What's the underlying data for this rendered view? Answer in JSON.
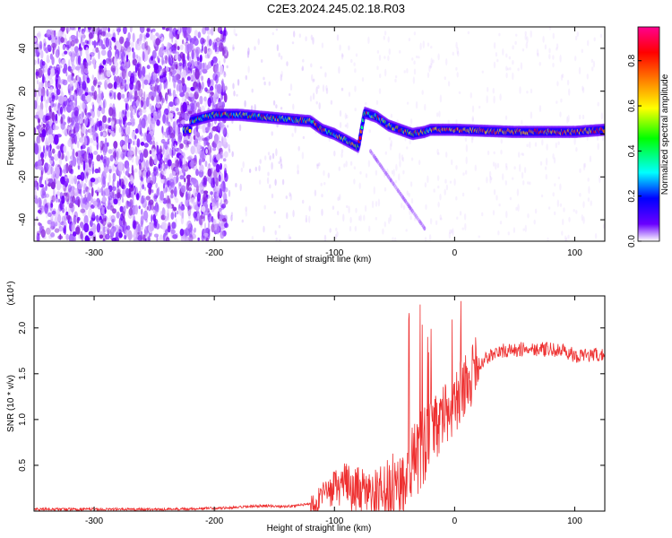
{
  "title": "C2E3.2024.245.02.18.R03",
  "chart_data": [
    {
      "type": "heatmap",
      "title": "C2E3.2024.245.02.18.R03",
      "xlabel": "Height of straight line (km)",
      "ylabel": "Frequency (Hz)",
      "xlim": [
        -350,
        125
      ],
      "ylim": [
        -50,
        50
      ],
      "xticks": [
        -300,
        -200,
        -100,
        0,
        100
      ],
      "yticks": [
        -40,
        -20,
        0,
        20,
        40
      ],
      "colorbar": {
        "label": "Normalized spectral amplitude",
        "range": [
          0,
          0.95
        ],
        "ticks": [
          0.0,
          0.2,
          0.4,
          0.6,
          0.8
        ],
        "colors": [
          "#ffffff",
          "#6a00ff",
          "#0000ff",
          "#00ffff",
          "#00ff00",
          "#ffff00",
          "#ff8000",
          "#ff0000",
          "#ff0090"
        ]
      },
      "ridge": [
        {
          "x": -220,
          "y": 6
        },
        {
          "x": -200,
          "y": 9
        },
        {
          "x": -180,
          "y": 9
        },
        {
          "x": -160,
          "y": 8
        },
        {
          "x": -140,
          "y": 7
        },
        {
          "x": -120,
          "y": 6
        },
        {
          "x": -110,
          "y": 2
        },
        {
          "x": -100,
          "y": 0
        },
        {
          "x": -90,
          "y": -3
        },
        {
          "x": -80,
          "y": -6
        },
        {
          "x": -75,
          "y": 10
        },
        {
          "x": -65,
          "y": 8
        },
        {
          "x": -55,
          "y": 4
        },
        {
          "x": -45,
          "y": 2
        },
        {
          "x": -35,
          "y": 0
        },
        {
          "x": -25,
          "y": 1
        },
        {
          "x": -20,
          "y": 2
        },
        {
          "x": 0,
          "y": 2
        },
        {
          "x": 50,
          "y": 1
        },
        {
          "x": 100,
          "y": 1
        },
        {
          "x": 125,
          "y": 2
        }
      ]
    },
    {
      "type": "line",
      "xlabel": "Height of straight line (km)",
      "ylabel": "SNR (10 * v/v)",
      "y_multiplier": "(x10⁴)",
      "xlim": [
        -350,
        125
      ],
      "ylim": [
        0,
        2.35
      ],
      "xticks": [
        -300,
        -200,
        -100,
        0,
        100
      ],
      "yticks": [
        0.5,
        1.0,
        1.5,
        2.0
      ],
      "ytick_labels": [
        "0.5",
        "1.0",
        "1.5",
        "2.0"
      ],
      "color": "#ee3030",
      "series": [
        {
          "x": [
            -350,
            -300,
            -250,
            -200,
            -180,
            -160,
            -140,
            -120,
            -110,
            -100,
            -90,
            -80,
            -70,
            -60,
            -50,
            -40,
            -30,
            -20,
            -10,
            0,
            10,
            20,
            30,
            40,
            50,
            60,
            70,
            80,
            90,
            100,
            110,
            125
          ],
          "y": [
            0.02,
            0.02,
            0.02,
            0.03,
            0.04,
            0.06,
            0.05,
            0.08,
            0.15,
            0.25,
            0.3,
            0.2,
            0.12,
            0.15,
            0.25,
            0.4,
            0.6,
            0.85,
            1.0,
            1.2,
            1.4,
            1.6,
            1.7,
            1.75,
            1.75,
            1.78,
            1.77,
            1.76,
            1.75,
            1.7,
            1.7,
            1.7
          ]
        }
      ]
    }
  ]
}
